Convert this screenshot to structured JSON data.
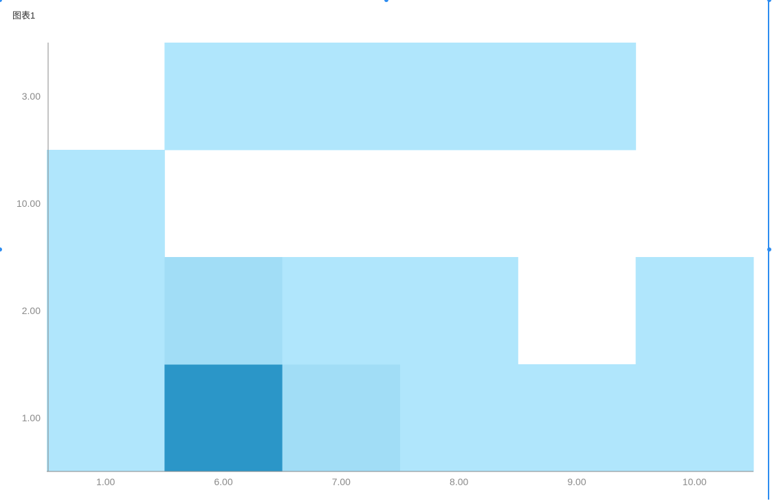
{
  "title": "图表1",
  "chart_data": {
    "type": "heatmap",
    "title": "图表1",
    "x_categories": [
      "1.00",
      "6.00",
      "7.00",
      "8.00",
      "9.00",
      "10.00"
    ],
    "y_categories": [
      "1.00",
      "2.00",
      "10.00",
      "3.00"
    ],
    "cells": [
      {
        "x": "1.00",
        "y": "1.00",
        "value": 1
      },
      {
        "x": "6.00",
        "y": "1.00",
        "value": 10
      },
      {
        "x": "7.00",
        "y": "1.00",
        "value": 2
      },
      {
        "x": "8.00",
        "y": "1.00",
        "value": 1
      },
      {
        "x": "9.00",
        "y": "1.00",
        "value": 1
      },
      {
        "x": "10.00",
        "y": "1.00",
        "value": 1
      },
      {
        "x": "1.00",
        "y": "2.00",
        "value": 1
      },
      {
        "x": "6.00",
        "y": "2.00",
        "value": 2
      },
      {
        "x": "7.00",
        "y": "2.00",
        "value": 1
      },
      {
        "x": "8.00",
        "y": "2.00",
        "value": 1
      },
      {
        "x": "10.00",
        "y": "2.00",
        "value": 1
      },
      {
        "x": "1.00",
        "y": "10.00",
        "value": 1
      },
      {
        "x": "6.00",
        "y": "3.00",
        "value": 1
      },
      {
        "x": "7.00",
        "y": "3.00",
        "value": 1
      },
      {
        "x": "8.00",
        "y": "3.00",
        "value": 1
      },
      {
        "x": "9.00",
        "y": "3.00",
        "value": 1
      }
    ],
    "color_low": "#b0e6fc",
    "color_high": "#2b96c8",
    "grid": false,
    "legend": "none"
  },
  "colors": {
    "axis": "#888888",
    "tick_label": "#8a8a8a",
    "selection": "#2d8cf0"
  }
}
